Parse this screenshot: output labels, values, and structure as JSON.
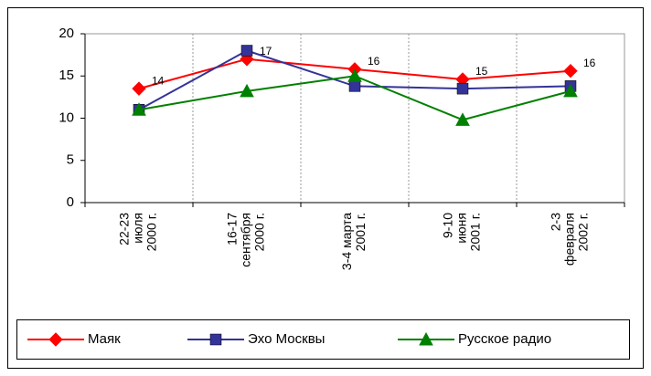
{
  "chart_data": {
    "type": "line",
    "categories": [
      [
        "22-23",
        "июля",
        "2000 г."
      ],
      [
        "16-17",
        "сентября",
        "2000 г."
      ],
      [
        "3-4 марта",
        "2001 г."
      ],
      [
        "9-10",
        "июня",
        "2001 г."
      ],
      [
        "2-3",
        "февраля",
        "2002 г."
      ]
    ],
    "series": [
      {
        "name": "Маяк",
        "color": "#ff0000",
        "marker": "diamond",
        "values": [
          13.5,
          17,
          15.8,
          14.6,
          15.6
        ],
        "value_labels": [
          "14",
          "17",
          "16",
          "15",
          "16"
        ]
      },
      {
        "name": "Эхо Москвы",
        "color": "#333399",
        "marker": "square",
        "values": [
          11,
          18,
          13.8,
          13.5,
          13.8
        ]
      },
      {
        "name": "Русское радио",
        "color": "#008000",
        "marker": "triangle",
        "values": [
          11,
          13.2,
          15,
          9.8,
          13.2
        ]
      }
    ],
    "ylim": [
      0,
      20
    ],
    "yticks": [
      0,
      5,
      10,
      15,
      20
    ],
    "grid": "x",
    "legend": "bottom"
  }
}
